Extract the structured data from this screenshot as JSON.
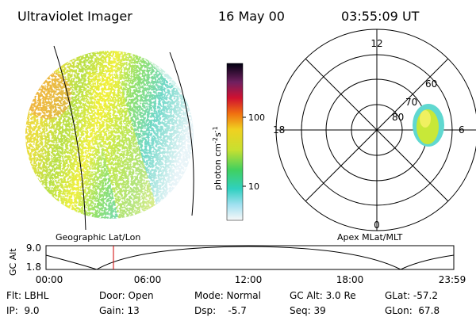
{
  "header": {
    "instrument": "Ultraviolet Imager",
    "date": "16 May 00",
    "time": "03:55:09 UT"
  },
  "colorbar": {
    "label": {
      "base": "photon cm",
      "exp1": "-2",
      "mid": "s",
      "exp2": "-1"
    },
    "ticks": [
      "100",
      "10"
    ]
  },
  "polar": {
    "hours": [
      "12",
      "18",
      "6",
      "0"
    ],
    "latitudes": [
      "60",
      "70",
      "80"
    ]
  },
  "map_labels": {
    "left": "Geographic Lat/Lon",
    "right": "Apex MLat/MLT"
  },
  "altitude_plot": {
    "ylabel": "GC Alt",
    "yticks": [
      "9.0",
      "1.8"
    ],
    "xticks": [
      "00:00",
      "06:00",
      "12:00",
      "18:00",
      "23:59"
    ]
  },
  "info": [
    [
      "Flt: LBHL",
      "Door: Open",
      "Mode: Normal",
      "GC Alt: 3.0 Re",
      "GLat: -57.2"
    ],
    [
      "IP:  9.0",
      "Gain: 13",
      "Dsp:    -5.7",
      "Seq: 39",
      "GLon:  67.8"
    ]
  ]
}
